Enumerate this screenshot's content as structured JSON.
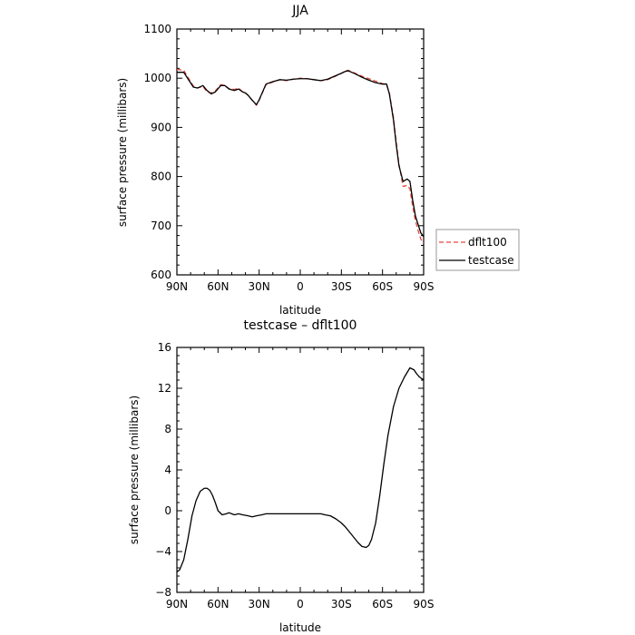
{
  "chart_data": [
    {
      "type": "line",
      "title": "JJA",
      "xlabel": "latitude",
      "ylabel": "surface pressure (millibars)",
      "xlim": [
        90,
        -90
      ],
      "ylim": [
        600,
        1100
      ],
      "x_ticks": [
        90,
        60,
        30,
        0,
        -30,
        -60,
        -90
      ],
      "x_tick_labels": [
        "90N",
        "60N",
        "30N",
        "0",
        "30S",
        "60S",
        "90S"
      ],
      "y_ticks": [
        600,
        700,
        800,
        900,
        1000,
        1100
      ],
      "y_tick_labels": [
        "600",
        "700",
        "800",
        "900",
        "1000",
        "1100"
      ],
      "grid": false,
      "legend": {
        "placement": "right",
        "entries": [
          "dflt100",
          "testcase"
        ]
      },
      "series": [
        {
          "name": "dflt100",
          "color": "#e8453c",
          "dash": "dashed",
          "x": [
            90,
            85,
            82,
            78,
            75,
            71,
            68,
            65,
            62,
            58,
            55,
            52,
            48,
            45,
            42,
            40,
            38,
            35,
            32,
            30,
            25,
            20,
            15,
            10,
            5,
            0,
            -5,
            -10,
            -15,
            -20,
            -25,
            -30,
            -33,
            -35,
            -40,
            -45,
            -50,
            -55,
            -60,
            -63,
            -65,
            -68,
            -70,
            -72,
            -75,
            -78,
            -80,
            -82,
            -84,
            -86,
            -88,
            -90
          ],
          "y": [
            1018,
            1016,
            1002,
            984,
            980,
            983,
            972,
            970,
            974,
            987,
            985,
            979,
            977,
            980,
            972,
            970,
            965,
            955,
            945,
            955,
            987,
            992,
            997,
            995,
            998,
            1000,
            999,
            997,
            995,
            997,
            1003,
            1010,
            1015,
            1016,
            1010,
            1004,
            999,
            994,
            989,
            986,
            970,
            920,
            870,
            825,
            780,
            782,
            775,
            740,
            710,
            690,
            672,
            665
          ]
        },
        {
          "name": "testcase",
          "color": "#000000",
          "dash": "solid",
          "x": [
            90,
            85,
            82,
            78,
            75,
            71,
            68,
            65,
            62,
            58,
            55,
            52,
            48,
            45,
            42,
            40,
            38,
            35,
            32,
            30,
            25,
            20,
            15,
            10,
            5,
            0,
            -5,
            -10,
            -15,
            -20,
            -25,
            -30,
            -33,
            -35,
            -40,
            -45,
            -50,
            -55,
            -60,
            -63,
            -65,
            -68,
            -70,
            -72,
            -75,
            -78,
            -80,
            -82,
            -84,
            -86,
            -88,
            -90
          ],
          "y": [
            1012,
            1012,
            999,
            982,
            980,
            985,
            975,
            968,
            972,
            985,
            985,
            978,
            975,
            978,
            972,
            970,
            965,
            955,
            946,
            956,
            988,
            993,
            997,
            996,
            998,
            999,
            999,
            997,
            995,
            998,
            1004,
            1010,
            1014,
            1015,
            1009,
            1002,
            996,
            991,
            988,
            988,
            968,
            915,
            865,
            822,
            790,
            795,
            790,
            752,
            720,
            702,
            685,
            678
          ]
        }
      ]
    },
    {
      "type": "line",
      "title": "testcase – dflt100",
      "xlabel": "latitude",
      "ylabel": "surface pressure (millibars)",
      "xlim": [
        90,
        -90
      ],
      "ylim": [
        -8,
        16
      ],
      "x_ticks": [
        90,
        60,
        30,
        0,
        -30,
        -60,
        -90
      ],
      "x_tick_labels": [
        "90N",
        "60N",
        "30N",
        "0",
        "30S",
        "60S",
        "90S"
      ],
      "y_ticks": [
        -8,
        -4,
        0,
        4,
        8,
        12,
        16
      ],
      "y_tick_labels": [
        "−8",
        "−4",
        "0",
        "4",
        "8",
        "12",
        "16"
      ],
      "grid": false,
      "series": [
        {
          "color": "#000000",
          "dash": "solid",
          "x": [
            90,
            88,
            85,
            82,
            79,
            76,
            73,
            70,
            68,
            66,
            64,
            62,
            60,
            57,
            54,
            52,
            50,
            48,
            45,
            42,
            38,
            35,
            32,
            28,
            25,
            20,
            15,
            10,
            5,
            0,
            -5,
            -10,
            -15,
            -18,
            -22,
            -26,
            -30,
            -33,
            -36,
            -39,
            -42,
            -45,
            -48,
            -50,
            -52,
            -55,
            -58,
            -61,
            -64,
            -68,
            -72,
            -76,
            -80,
            -83,
            -85,
            -87,
            -89,
            -90
          ],
          "y": [
            -6.0,
            -5.8,
            -4.8,
            -2.8,
            -0.5,
            1.0,
            1.9,
            2.2,
            2.2,
            2.0,
            1.5,
            0.8,
            0.0,
            -0.4,
            -0.3,
            -0.2,
            -0.3,
            -0.4,
            -0.3,
            -0.4,
            -0.5,
            -0.6,
            -0.5,
            -0.4,
            -0.3,
            -0.3,
            -0.3,
            -0.3,
            -0.3,
            -0.3,
            -0.3,
            -0.3,
            -0.3,
            -0.4,
            -0.5,
            -0.8,
            -1.2,
            -1.6,
            -2.1,
            -2.6,
            -3.1,
            -3.5,
            -3.6,
            -3.4,
            -2.8,
            -1.2,
            1.5,
            4.6,
            7.4,
            10.2,
            12.0,
            13.1,
            14.0,
            13.8,
            13.4,
            13.1,
            12.9,
            12.9
          ]
        }
      ]
    }
  ]
}
